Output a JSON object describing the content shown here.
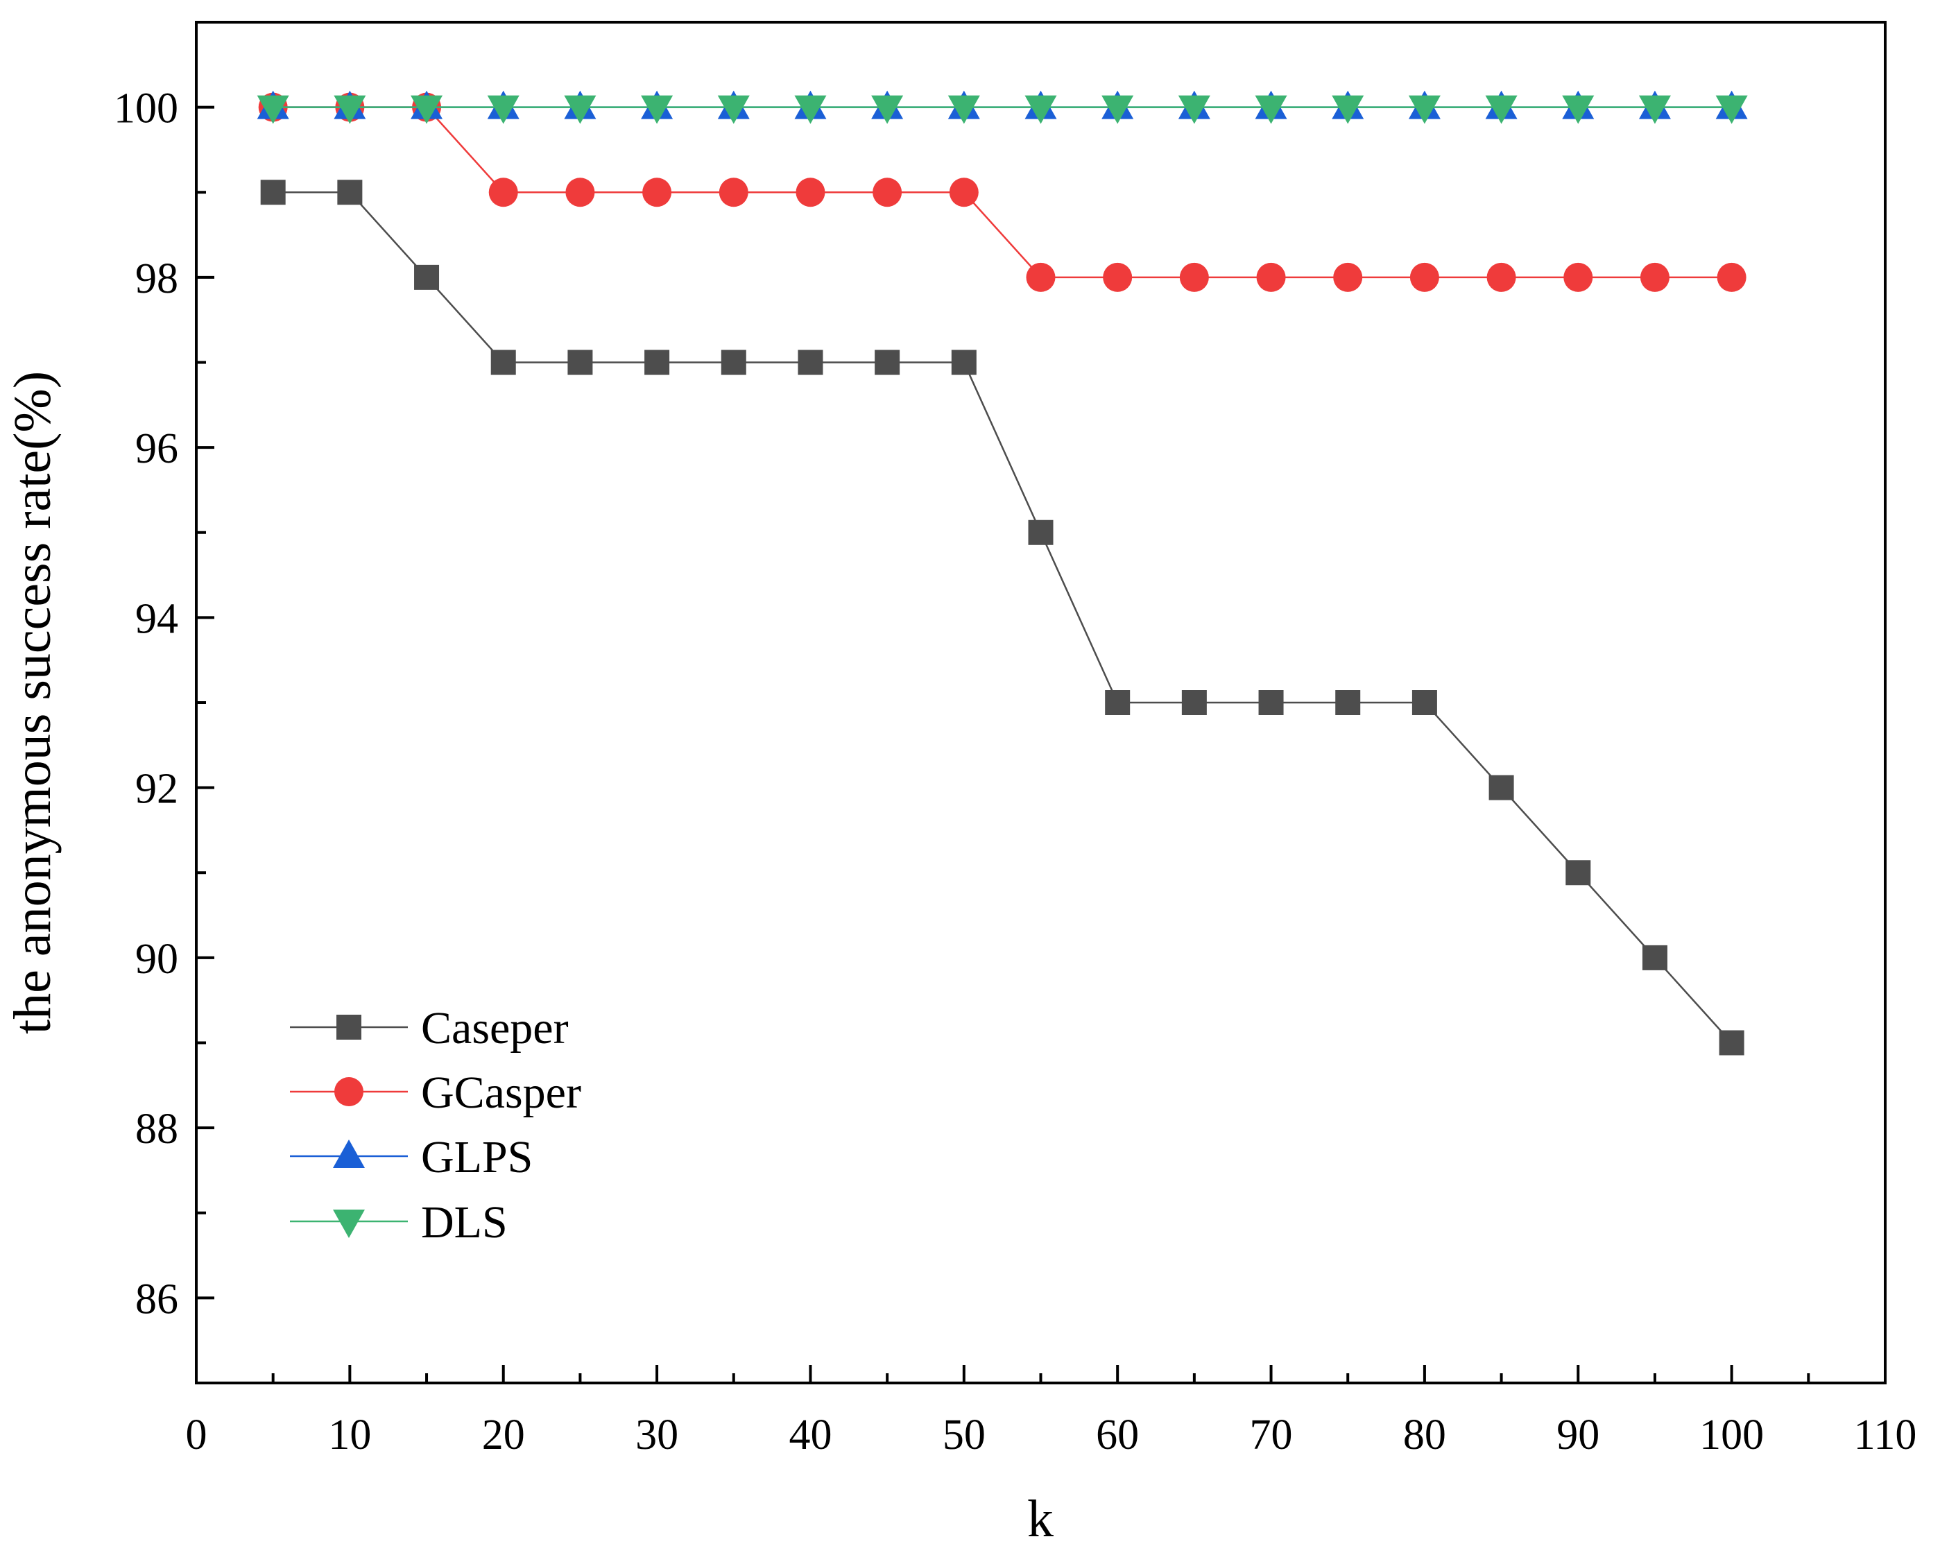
{
  "chart_data": {
    "type": "line",
    "title": "",
    "xlabel": "k",
    "ylabel": "the anonymous success rate(%)",
    "xlim": [
      0,
      110
    ],
    "ylim": [
      85,
      101
    ],
    "x_ticks": [
      0,
      10,
      20,
      30,
      40,
      50,
      60,
      70,
      80,
      90,
      100,
      110
    ],
    "y_ticks": [
      86,
      88,
      90,
      92,
      94,
      96,
      98,
      100
    ],
    "grid": false,
    "legend_position": "bottom-left",
    "x": [
      5,
      10,
      15,
      20,
      25,
      30,
      35,
      40,
      45,
      50,
      55,
      60,
      65,
      70,
      75,
      80,
      85,
      90,
      95,
      100
    ],
    "series": [
      {
        "name": "Caseper",
        "color": "#4d4d4d",
        "marker": "square",
        "values": [
          99,
          99,
          98,
          97,
          97,
          97,
          97,
          97,
          97,
          97,
          95,
          93,
          93,
          93,
          93,
          93,
          92,
          91,
          90,
          89
        ]
      },
      {
        "name": "GCasper",
        "color": "#ef3b3b",
        "marker": "circle",
        "values": [
          100,
          100,
          100,
          99,
          99,
          99,
          99,
          99,
          99,
          99,
          98,
          98,
          98,
          98,
          98,
          98,
          98,
          98,
          98,
          98
        ]
      },
      {
        "name": "GLPS",
        "color": "#1a5fd6",
        "marker": "triangle-up",
        "values": [
          100,
          100,
          100,
          100,
          100,
          100,
          100,
          100,
          100,
          100,
          100,
          100,
          100,
          100,
          100,
          100,
          100,
          100,
          100,
          100
        ]
      },
      {
        "name": "DLS",
        "color": "#3cb371",
        "marker": "triangle-down",
        "values": [
          100,
          100,
          100,
          100,
          100,
          100,
          100,
          100,
          100,
          100,
          100,
          100,
          100,
          100,
          100,
          100,
          100,
          100,
          100,
          100
        ]
      }
    ]
  }
}
